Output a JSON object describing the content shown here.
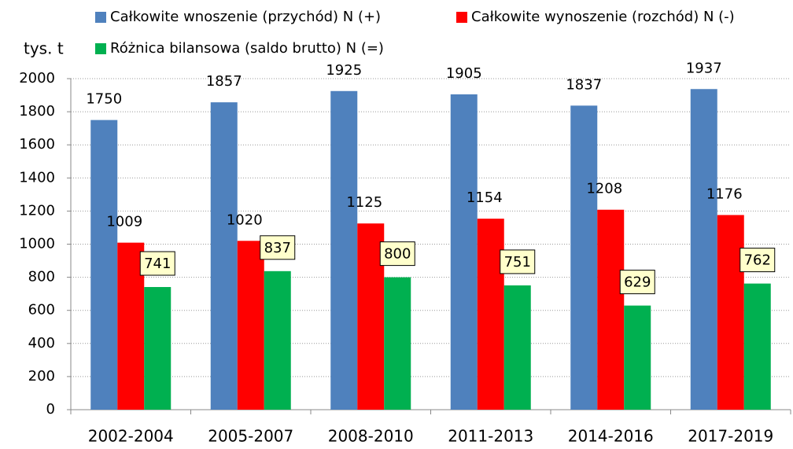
{
  "chart_data": {
    "type": "bar",
    "y_label": "tys. t",
    "categories": [
      "2002-2004",
      "2005-2007",
      "2008-2010",
      "2011-2013",
      "2014-2016",
      "2017-2019"
    ],
    "series": [
      {
        "name": "Całkowite wnoszenie (przychód)  N  (+)",
        "color": "#4f81bd",
        "values": [
          1750,
          1857,
          1925,
          1905,
          1837,
          1937
        ]
      },
      {
        "name": "Całkowite wynoszenie (rozchód) N  (-)",
        "color": "#ff0000",
        "values": [
          1009,
          1020,
          1125,
          1154,
          1208,
          1176
        ]
      },
      {
        "name": "Różnica bilansowa (saldo brutto) N  (=)",
        "color": "#00b050",
        "values": [
          741,
          837,
          800,
          751,
          629,
          762
        ]
      }
    ],
    "ylim": [
      0,
      2000
    ],
    "yticks": [
      0,
      200,
      400,
      600,
      800,
      1000,
      1200,
      1400,
      1600,
      1800,
      2000
    ],
    "grid": true
  }
}
